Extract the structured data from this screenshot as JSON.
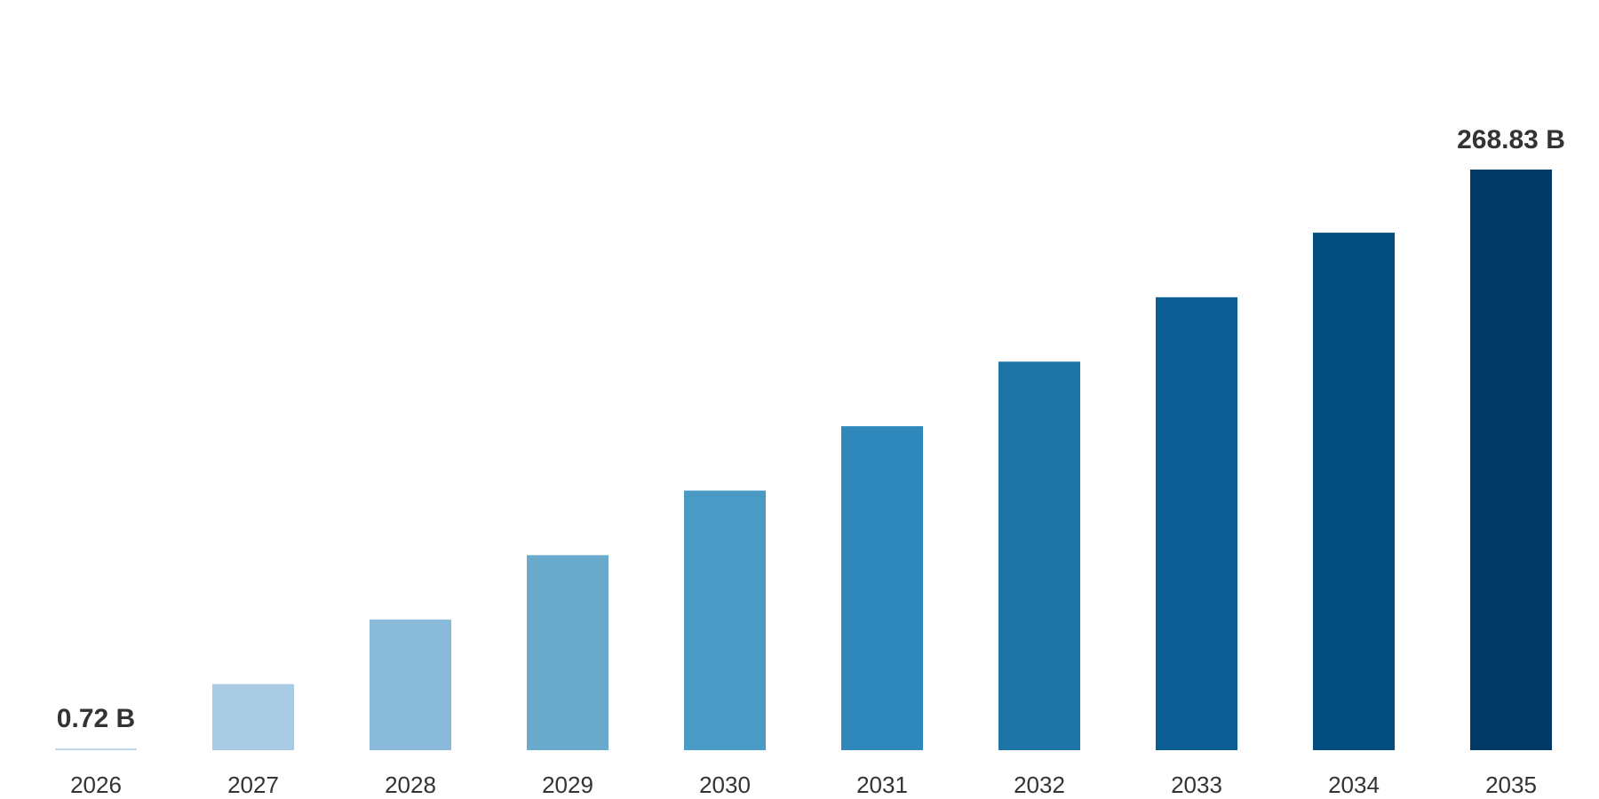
{
  "chart_data": {
    "type": "bar",
    "title": "",
    "xlabel": "",
    "ylabel": "",
    "categories": [
      "2026",
      "2027",
      "2028",
      "2029",
      "2030",
      "2031",
      "2032",
      "2033",
      "2034",
      "2035"
    ],
    "values": [
      0.72,
      30.6,
      60.5,
      90.3,
      120.2,
      150.0,
      179.9,
      209.7,
      239.6,
      268.83
    ],
    "data_labels": [
      {
        "index": 0,
        "text": "0.72 B"
      },
      {
        "index": 9,
        "text": "268.83 B"
      }
    ],
    "colors": [
      "#b7d0e6",
      "#a8cae3",
      "#89bad9",
      "#69aacd",
      "#4a9ac6",
      "#2e88bc",
      "#1c74a7",
      "#0b5e93",
      "#024e7e",
      "#033a65"
    ],
    "ylim": [
      0,
      268.83
    ],
    "grid": false,
    "legend": "none"
  }
}
